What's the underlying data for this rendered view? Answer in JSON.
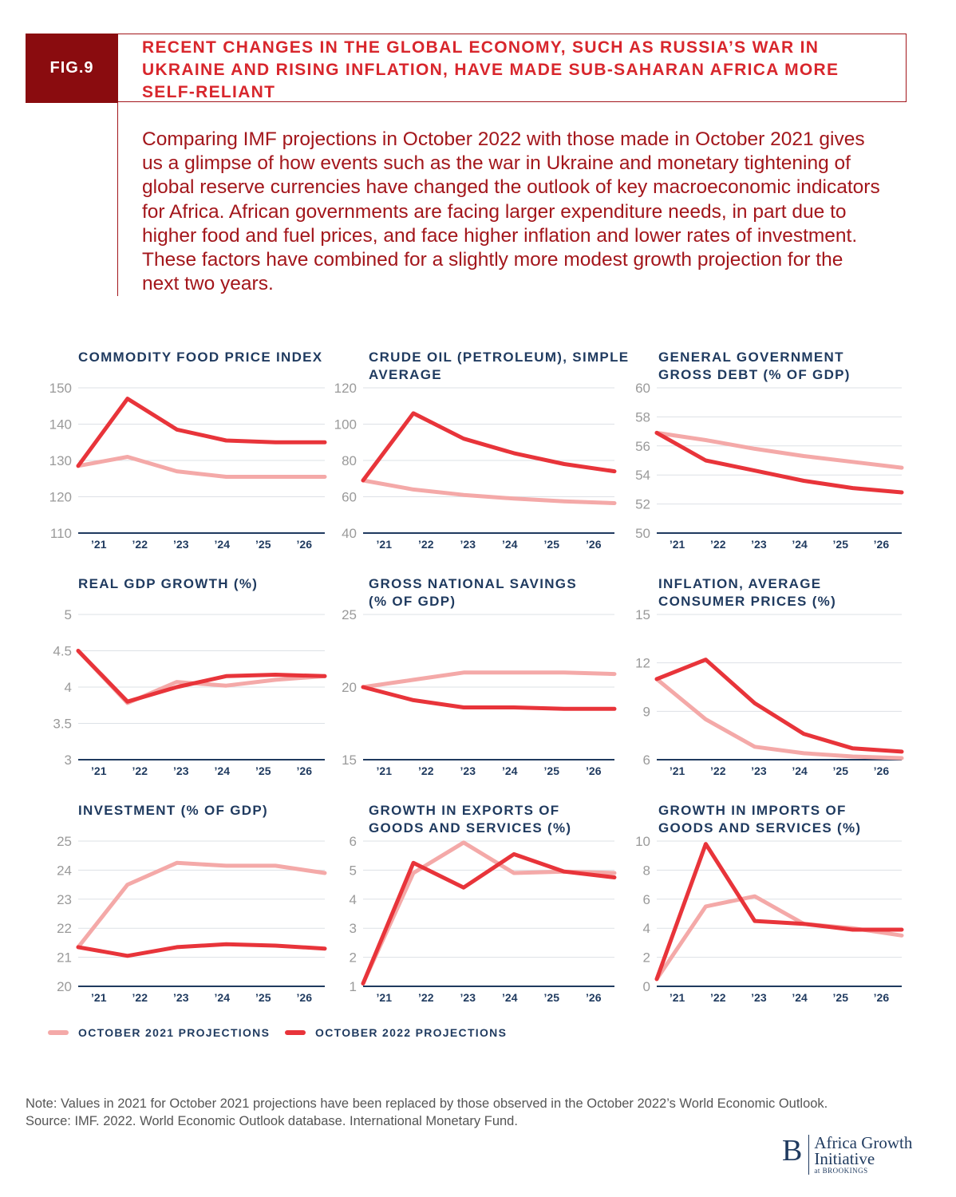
{
  "header": {
    "fig_label": "FIG.9",
    "title": "RECENT CHANGES IN THE GLOBAL ECONOMY, SUCH AS RUSSIA’S WAR IN UKRAINE AND RISING INFLATION, HAVE MADE SUB-SAHARAN AFRICA MORE SELF-RELIANT"
  },
  "intro": "Comparing IMF projections in October 2022 with those made in October 2021 gives us a glimpse of how events such as the war in Ukraine and monetary tightening of global reserve currencies have changed the outlook of key macroeconomic indicators for Africa. African governments are facing larger expenditure needs, in part due to higher food and fuel prices, and face higher inflation and lower rates of investment. These factors have combined for a slightly more modest growth projection for the next two years.",
  "colors": {
    "oct2021": "#f4a9a8",
    "oct2022": "#e8343a",
    "title": "#1f3a5f",
    "axis": "#1f3a5f",
    "grid": "#dde1e6",
    "tick": "#9a9a9a"
  },
  "legend": [
    {
      "label": "OCTOBER 2021 PROJECTIONS"
    },
    {
      "label": "OCTOBER 2022 PROJECTIONS"
    }
  ],
  "chart_data": [
    {
      "type": "line",
      "title": "COMMODITY FOOD PRICE INDEX",
      "categories": [
        "'21",
        "'22",
        "'23",
        "'24",
        "'25",
        "'26"
      ],
      "yticks": [
        "110",
        "120",
        "130",
        "140",
        "150"
      ],
      "ylim": [
        110,
        150
      ],
      "grid": true,
      "series": [
        {
          "name": "OCTOBER 2021 PROJECTIONS",
          "values": [
            128.5,
            131,
            127,
            125.5,
            125.5,
            125.5
          ]
        },
        {
          "name": "OCTOBER 2022 PROJECTIONS",
          "values": [
            128.5,
            147,
            138.5,
            135.5,
            135,
            135
          ]
        }
      ]
    },
    {
      "type": "line",
      "title": "CRUDE OIL (PETROLEUM), SIMPLE AVERAGE",
      "categories": [
        "'21",
        "'22",
        "'23",
        "'24",
        "'25",
        "'26"
      ],
      "yticks": [
        "40",
        "60",
        "80",
        "100",
        "120"
      ],
      "ylim": [
        40,
        120
      ],
      "grid": true,
      "series": [
        {
          "name": "OCTOBER 2021 PROJECTIONS",
          "values": [
            69,
            64,
            61,
            59,
            57.5,
            56.5
          ]
        },
        {
          "name": "OCTOBER 2022 PROJECTIONS",
          "values": [
            69,
            106,
            92,
            84,
            78,
            74
          ]
        }
      ]
    },
    {
      "type": "line",
      "title": "GENERAL GOVERNMENT GROSS DEBT (% OF GDP)",
      "categories": [
        "'21",
        "'22",
        "'23",
        "'24",
        "'25",
        "'26"
      ],
      "yticks": [
        "50",
        "52",
        "54",
        "56",
        "58",
        "60"
      ],
      "ylim": [
        50,
        60
      ],
      "grid": true,
      "series": [
        {
          "name": "OCTOBER 2021 PROJECTIONS",
          "values": [
            56.9,
            56.4,
            55.8,
            55.3,
            54.9,
            54.5
          ]
        },
        {
          "name": "OCTOBER 2022 PROJECTIONS",
          "values": [
            56.9,
            55,
            54.3,
            53.6,
            53.1,
            52.8
          ]
        }
      ]
    },
    {
      "type": "line",
      "title": "REAL GDP GROWTH (%)",
      "categories": [
        "'21",
        "'22",
        "'23",
        "'24",
        "'25",
        "'26"
      ],
      "yticks": [
        "3",
        "3.5",
        "4",
        "4.5",
        "5"
      ],
      "ylim": [
        3,
        5
      ],
      "grid": true,
      "series": [
        {
          "name": "OCTOBER 2021 PROJECTIONS",
          "values": [
            4.5,
            3.78,
            4.07,
            4.02,
            4.1,
            4.15
          ]
        },
        {
          "name": "OCTOBER 2022 PROJECTIONS",
          "values": [
            4.5,
            3.8,
            4.0,
            4.15,
            4.17,
            4.15
          ]
        }
      ]
    },
    {
      "type": "line",
      "title": "GROSS NATIONAL SAVINGS (% OF GDP)",
      "categories": [
        "'21",
        "'22",
        "'23",
        "'24",
        "'25",
        "'26"
      ],
      "yticks": [
        "15",
        "20",
        "25"
      ],
      "ylim": [
        15,
        25
      ],
      "grid": true,
      "series": [
        {
          "name": "OCTOBER 2021 PROJECTIONS",
          "values": [
            20,
            20.5,
            21,
            21,
            21,
            20.9
          ]
        },
        {
          "name": "OCTOBER 2022 PROJECTIONS",
          "values": [
            20,
            19.1,
            18.6,
            18.6,
            18.5,
            18.5
          ]
        }
      ]
    },
    {
      "type": "line",
      "title": "INFLATION, AVERAGE CONSUMER PRICES (%)",
      "categories": [
        "'21",
        "'22",
        "'23",
        "'24",
        "'25",
        "'26"
      ],
      "yticks": [
        "6",
        "9",
        "12",
        "15"
      ],
      "ylim": [
        6,
        15
      ],
      "grid": true,
      "series": [
        {
          "name": "OCTOBER 2021 PROJECTIONS",
          "values": [
            11,
            8.5,
            6.8,
            6.4,
            6.2,
            6.1
          ]
        },
        {
          "name": "OCTOBER 2022 PROJECTIONS",
          "values": [
            11,
            12.2,
            9.5,
            7.6,
            6.7,
            6.5
          ]
        }
      ]
    },
    {
      "type": "line",
      "title": "INVESTMENT (% OF GDP)",
      "categories": [
        "'21",
        "'22",
        "'23",
        "'24",
        "'25",
        "'26"
      ],
      "yticks": [
        "20",
        "21",
        "22",
        "23",
        "24",
        "25"
      ],
      "ylim": [
        20,
        25
      ],
      "grid": true,
      "series": [
        {
          "name": "OCTOBER 2021 PROJECTIONS",
          "values": [
            21.35,
            23.5,
            24.25,
            24.15,
            24.15,
            23.9
          ]
        },
        {
          "name": "OCTOBER 2022 PROJECTIONS",
          "values": [
            21.35,
            21.05,
            21.35,
            21.45,
            21.4,
            21.3
          ]
        }
      ]
    },
    {
      "type": "line",
      "title": "GROWTH IN EXPORTS OF GOODS AND SERVICES (%)",
      "categories": [
        "'21",
        "'22",
        "'23",
        "'24",
        "'25",
        "'26"
      ],
      "yticks": [
        "1",
        "2",
        "3",
        "4",
        "5",
        "6"
      ],
      "ylim": [
        1,
        6
      ],
      "grid": true,
      "series": [
        {
          "name": "OCTOBER 2021 PROJECTIONS",
          "values": [
            1.1,
            4.9,
            5.95,
            4.9,
            4.95,
            4.9
          ]
        },
        {
          "name": "OCTOBER 2022 PROJECTIONS",
          "values": [
            1.1,
            5.25,
            4.4,
            5.55,
            4.95,
            4.75
          ]
        }
      ]
    },
    {
      "type": "line",
      "title": "GROWTH IN IMPORTS OF GOODS AND SERVICES (%)",
      "categories": [
        "'21",
        "'22",
        "'23",
        "'24",
        "'25",
        "'26"
      ],
      "yticks": [
        "0",
        "2",
        "4",
        "6",
        "8",
        "10"
      ],
      "ylim": [
        0,
        10
      ],
      "grid": true,
      "series": [
        {
          "name": "OCTOBER 2021 PROJECTIONS",
          "values": [
            0.5,
            5.5,
            6.2,
            4.3,
            4,
            3.5
          ]
        },
        {
          "name": "OCTOBER 2022 PROJECTIONS",
          "values": [
            0.5,
            9.8,
            4.5,
            4.3,
            3.9,
            3.9
          ]
        }
      ]
    }
  ],
  "note": "Note: Values in 2021 for October 2021 projections have been replaced by those observed in the October 2022’s World Economic Outlook.",
  "source": "Source: IMF. 2022. World Economic Outlook database. International Monetary Fund.",
  "logo": {
    "letter": "B",
    "line1": "Africa Growth",
    "line2": "Initiative",
    "line3": "at BROOKINGS"
  }
}
